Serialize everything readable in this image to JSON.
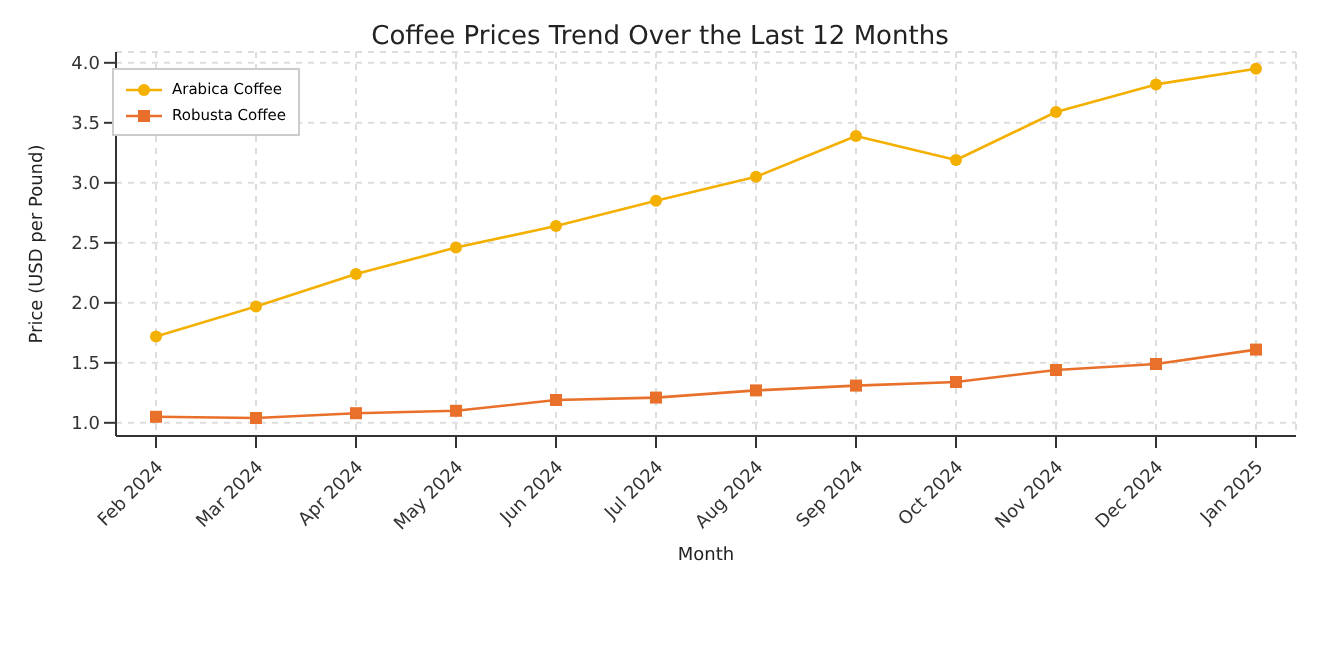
{
  "chart_data": {
    "type": "line",
    "title": "Coffee Prices Trend Over the Last 12 Months",
    "xlabel": "Month",
    "ylabel": "Price (USD per Pound)",
    "categories": [
      "Feb 2024",
      "Mar 2024",
      "Apr 2024",
      "May 2024",
      "Jun 2024",
      "Jul 2024",
      "Aug 2024",
      "Sep 2024",
      "Oct 2024",
      "Nov 2024",
      "Dec 2024",
      "Jan 2025"
    ],
    "series": [
      {
        "name": "Arabica Coffee",
        "color": "#f4b000",
        "marker": "circle",
        "values": [
          1.72,
          1.97,
          2.24,
          2.46,
          2.64,
          2.85,
          3.05,
          3.39,
          3.19,
          3.59,
          3.82,
          3.95
        ]
      },
      {
        "name": "Robusta Coffee",
        "color": "#e8702a",
        "marker": "square",
        "values": [
          1.05,
          1.04,
          1.08,
          1.1,
          1.19,
          1.21,
          1.27,
          1.31,
          1.34,
          1.44,
          1.49,
          1.61
        ]
      }
    ],
    "ylim": [
      0.89,
      4.09
    ],
    "yticks": [
      {
        "value": 1,
        "label": "1.0"
      },
      {
        "value": 1.5,
        "label": "1.5"
      },
      {
        "value": 2,
        "label": "2.0"
      },
      {
        "value": 2.5,
        "label": "2.5"
      },
      {
        "value": 3,
        "label": "3.0"
      },
      {
        "value": 3.5,
        "label": "3.5"
      },
      {
        "value": 4,
        "label": "4.0"
      }
    ],
    "grid": true,
    "legend": "top left",
    "line_style": "solid"
  }
}
